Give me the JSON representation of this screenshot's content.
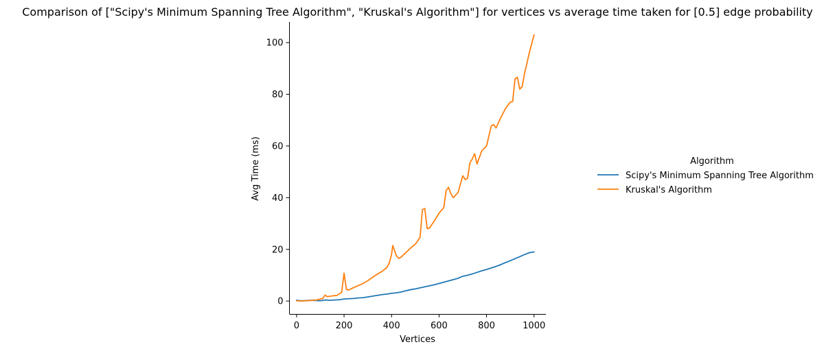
{
  "chart_data": {
    "type": "line",
    "title": "Comparison of [\"Scipy's Minimum Spanning Tree Algorithm\", \"Kruskal's Algorithm\"] for vertices vs average time taken for [0.5] edge probability",
    "xlabel": "Vertices",
    "ylabel": "Avg Time (ms)",
    "xlim": [
      -30,
      1050
    ],
    "ylim": [
      -5,
      108
    ],
    "x_ticks": [
      0,
      200,
      400,
      600,
      800,
      1000
    ],
    "y_ticks": [
      0,
      20,
      40,
      60,
      80,
      100
    ],
    "grid": false,
    "legend": {
      "title": "Algorithm",
      "position": "right"
    },
    "series": [
      {
        "name": "Scipy's Minimum Spanning Tree Algorithm",
        "color": "#1f77b4",
        "x": [
          0,
          20,
          40,
          60,
          80,
          100,
          120,
          140,
          160,
          180,
          200,
          220,
          240,
          260,
          280,
          300,
          320,
          340,
          360,
          380,
          400,
          420,
          440,
          460,
          480,
          500,
          520,
          540,
          560,
          580,
          600,
          620,
          640,
          660,
          680,
          700,
          720,
          740,
          760,
          780,
          800,
          820,
          840,
          860,
          880,
          900,
          920,
          940,
          960,
          980,
          1000
        ],
        "y": [
          0.3,
          0.1,
          0.2,
          0.3,
          0.2,
          0.1,
          0.4,
          0.3,
          0.4,
          0.5,
          0.8,
          0.9,
          1.0,
          1.2,
          1.3,
          1.6,
          1.9,
          2.2,
          2.5,
          2.7,
          3.0,
          3.2,
          3.5,
          4.0,
          4.4,
          4.7,
          5.1,
          5.5,
          5.9,
          6.3,
          6.8,
          7.3,
          7.8,
          8.3,
          8.8,
          9.6,
          10.0,
          10.5,
          11.1,
          11.7,
          12.2,
          12.8,
          13.4,
          14.1,
          14.9,
          15.6,
          16.4,
          17.2,
          18.0,
          18.7,
          19.0
        ]
      },
      {
        "name": "Kruskal's Algorithm",
        "color": "#ff7f0e",
        "x": [
          0,
          20,
          40,
          60,
          70,
          80,
          100,
          110,
          120,
          130,
          150,
          170,
          190,
          200,
          210,
          220,
          240,
          260,
          280,
          300,
          320,
          340,
          360,
          380,
          390,
          400,
          405,
          420,
          430,
          440,
          460,
          480,
          500,
          520,
          530,
          540,
          550,
          560,
          580,
          600,
          620,
          630,
          640,
          650,
          660,
          680,
          700,
          710,
          720,
          730,
          740,
          750,
          760,
          780,
          800,
          820,
          830,
          840,
          860,
          880,
          900,
          910,
          920,
          930,
          940,
          950,
          960,
          970,
          980,
          1000
        ],
        "y": [
          0.1,
          0.0,
          0.1,
          0.2,
          0.4,
          0.3,
          0.8,
          1.0,
          2.3,
          1.7,
          2.0,
          2.2,
          3.4,
          10.8,
          4.5,
          4.3,
          5.2,
          6.0,
          6.8,
          7.9,
          9.2,
          10.4,
          11.5,
          13.0,
          14.6,
          18.0,
          21.5,
          17.6,
          16.5,
          17.0,
          18.7,
          20.5,
          22.0,
          24.6,
          35.4,
          35.8,
          28.0,
          28.3,
          31.0,
          34.0,
          36.2,
          42.8,
          44.0,
          41.5,
          40.0,
          42.0,
          48.5,
          47.0,
          47.5,
          53.5,
          55.0,
          57.0,
          53.0,
          58.2,
          60.0,
          67.8,
          68.3,
          67.0,
          71.0,
          74.5,
          77.0,
          77.2,
          86.0,
          86.6,
          82.0,
          83.0,
          88.0,
          92.0,
          96.0,
          103.0
        ]
      }
    ]
  }
}
